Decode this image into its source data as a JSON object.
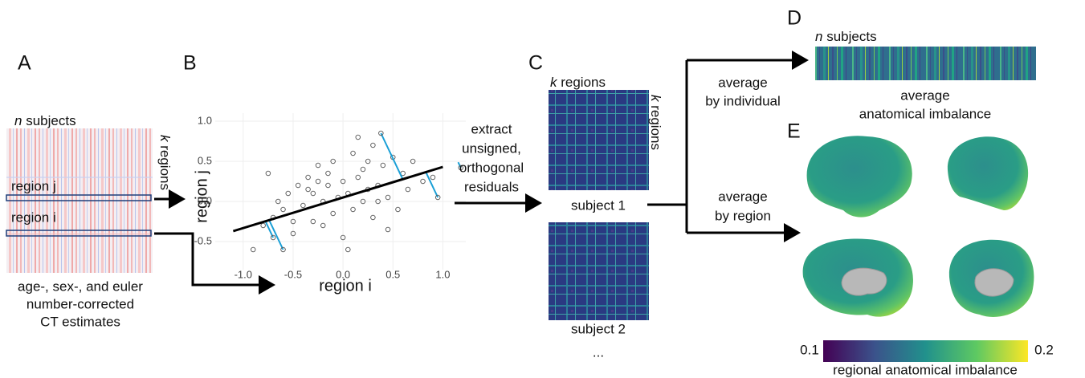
{
  "panels": {
    "A": "A",
    "B": "B",
    "C": "C",
    "D": "D",
    "E": "E"
  },
  "panel_a": {
    "subjects": {
      "italic": "n",
      "rest": "subjects"
    },
    "regions": {
      "italic": "k",
      "rest": "regions"
    },
    "region_j": "region j",
    "region_i": "region i",
    "caption": [
      "age-, sex-, and euler",
      "number-corrected",
      "CT estimates"
    ]
  },
  "scatter": {
    "x": [
      -0.9,
      -0.8,
      -0.75,
      -0.7,
      -0.6,
      -0.55,
      -0.5,
      -0.45,
      -0.4,
      -0.35,
      -0.3,
      -0.3,
      -0.25,
      -0.2,
      -0.2,
      -0.15,
      -0.1,
      -0.1,
      -0.05,
      0,
      0,
      0.05,
      0.1,
      0.1,
      0.15,
      0.2,
      0.2,
      0.25,
      0.3,
      0.3,
      0.35,
      0.4,
      0.45,
      0.5,
      0.55,
      0.6,
      0.65,
      0.7,
      0.8,
      0.9,
      -0.65,
      -0.5,
      -0.35,
      -0.15,
      0.05,
      0.25,
      0.45,
      0.15,
      -0.25,
      0.35
    ],
    "y": [
      -0.6,
      -0.3,
      0.35,
      -0.2,
      -0.1,
      0.1,
      -0.4,
      0.2,
      -0.05,
      0.3,
      -0.25,
      0.1,
      0.45,
      0.0,
      -0.3,
      0.2,
      0.5,
      -0.15,
      0.05,
      0.25,
      -0.45,
      0.1,
      0.6,
      -0.1,
      0.3,
      0.0,
      0.4,
      0.15,
      0.7,
      -0.2,
      0.2,
      0.45,
      0.05,
      0.55,
      -0.1,
      0.35,
      0.15,
      0.5,
      0.25,
      0.3,
      0.0,
      -0.25,
      0.15,
      0.35,
      -0.6,
      0.5,
      -0.35,
      0.8,
      0.25,
      0.0
    ],
    "fit_line": {
      "x": [
        -1.1,
        1.0
      ],
      "y": [
        -0.37,
        0.43
      ]
    },
    "residual_points": {
      "x": [
        0.38,
        0.95,
        -0.7,
        -0.6,
        1.18
      ],
      "y": [
        0.85,
        0.05,
        -0.45,
        -0.6,
        0.42
      ]
    },
    "xlim": [
      -1.28,
      1.23
    ],
    "ylim": [
      -0.85,
      1.1
    ],
    "xticks": [
      {
        "value": -1,
        "label": "-1.0"
      },
      -0.5,
      {
        "value": 0,
        "label": "0.0"
      },
      0.5,
      {
        "value": 1,
        "label": "1.0"
      }
    ],
    "yticks": [
      -0.5,
      {
        "value": 0,
        "label": "0.0"
      },
      0.5,
      {
        "value": 1,
        "label": "1.0"
      }
    ],
    "xlabel": "region i",
    "ylabel": "region j"
  },
  "extract_label": [
    "extract",
    "unsigned,",
    "orthogonal",
    "residuals"
  ],
  "panel_c": {
    "regions_top": {
      "italic": "k",
      "rest": "regions"
    },
    "regions_side": {
      "italic": "k",
      "rest": "regions"
    },
    "subject_1": "subject 1",
    "subject_2": "subject 2",
    "more": "..."
  },
  "average_individual": [
    "average",
    "by individual"
  ],
  "average_region": [
    "average",
    "by region"
  ],
  "panel_d": {
    "subjects": {
      "italic": "n",
      "rest": "subjects"
    },
    "caption": [
      "average",
      "anatomical imbalance"
    ]
  },
  "colorbar": {
    "lim": [
      0.1,
      0.2
    ],
    "label": "regional anatomical imbalance"
  }
}
